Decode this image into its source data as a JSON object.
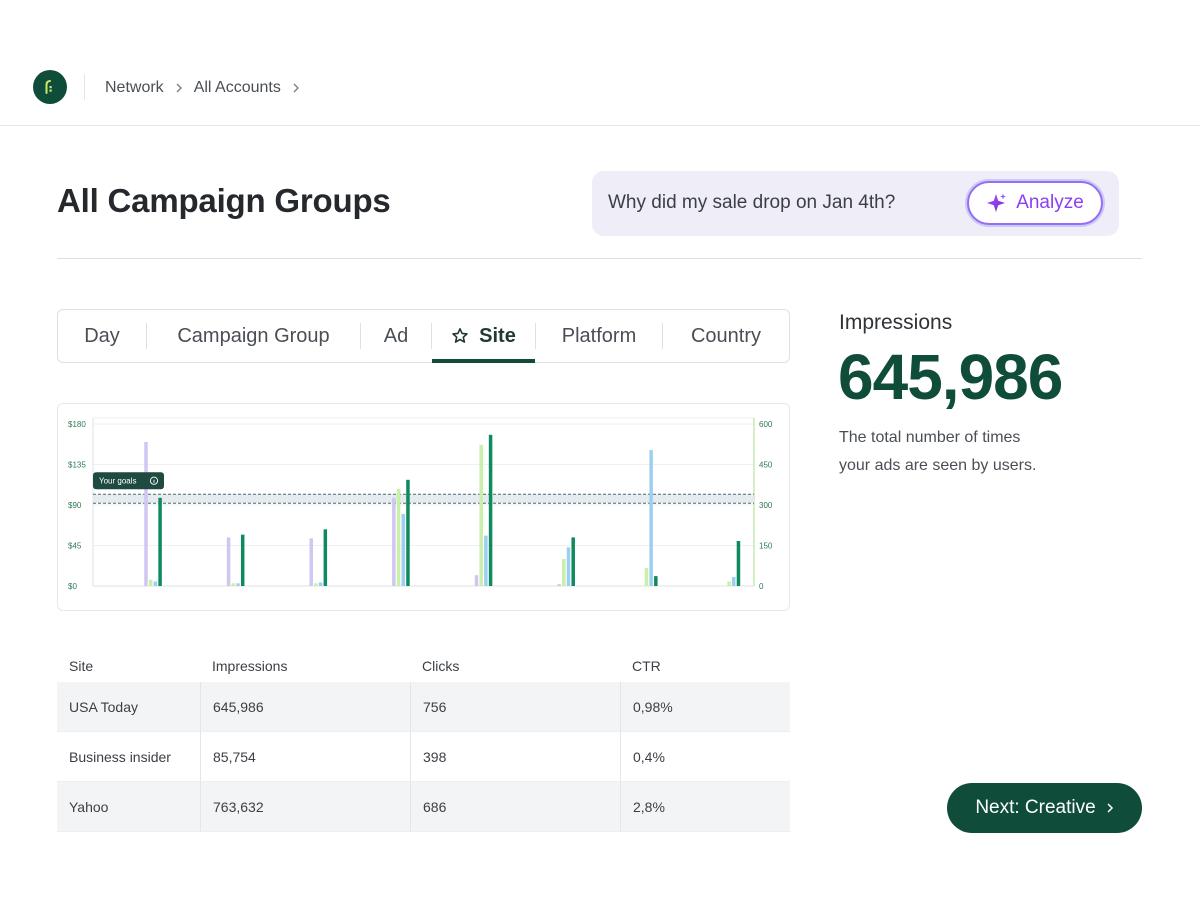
{
  "breadcrumb": {
    "items": [
      "Network",
      "All Accounts"
    ]
  },
  "page": {
    "title": "All Campaign Groups"
  },
  "assistant": {
    "question": "Why did my sale drop on Jan 4th?",
    "analyze_label": "Analyze"
  },
  "tabs": [
    "Day",
    "Campaign Group",
    "Ad",
    "Site",
    "Platform",
    "Country"
  ],
  "active_tab": "Site",
  "metric": {
    "label": "Impressions",
    "value": "645,986",
    "description_line1": "The total number of times",
    "description_line2": "your ads are seen by users."
  },
  "chart_data": {
    "type": "bar",
    "left_axis_ticks": [
      "$180",
      "$135",
      "$90",
      "$45",
      "$0"
    ],
    "right_axis_ticks": [
      "600",
      "450",
      "300",
      "150",
      "0"
    ],
    "ylim_left": [
      0,
      180
    ],
    "ylim_right": [
      0,
      600
    ],
    "goal_label": "Your goals",
    "goal_band_left": [
      92,
      102
    ],
    "series": [
      {
        "color": "#cfc7f2",
        "values": [
          160,
          54,
          53,
          98,
          12,
          2,
          0,
          0
        ]
      },
      {
        "color": "#c9f0a8",
        "values": [
          7,
          3,
          3,
          108,
          157,
          30,
          20,
          5
        ]
      },
      {
        "color": "#9ccff0",
        "values": [
          5,
          3,
          4,
          80,
          56,
          43,
          151,
          10
        ]
      },
      {
        "color": "#0f8a5e",
        "values": [
          98,
          57,
          63,
          118,
          168,
          54,
          11,
          50
        ]
      }
    ],
    "colors": {
      "goal_line": "#4d6b73",
      "goal_band": "#e5ebef",
      "grid": "#eef0f2",
      "right_axis_line": "#b7e59a"
    }
  },
  "table": {
    "headers": [
      "Site",
      "Impressions",
      "Clicks",
      "CTR"
    ],
    "rows": [
      [
        "USA Today",
        "645,986",
        "756",
        "0,98%"
      ],
      [
        "Business insider",
        "85,754",
        "398",
        "0,4%"
      ],
      [
        "Yahoo",
        "763,632",
        "686",
        "2,8%"
      ]
    ]
  },
  "next_button": {
    "label": "Next: Creative"
  },
  "colors": {
    "brand": "#0f4d3a",
    "accent_purple": "#8a3ff0"
  }
}
